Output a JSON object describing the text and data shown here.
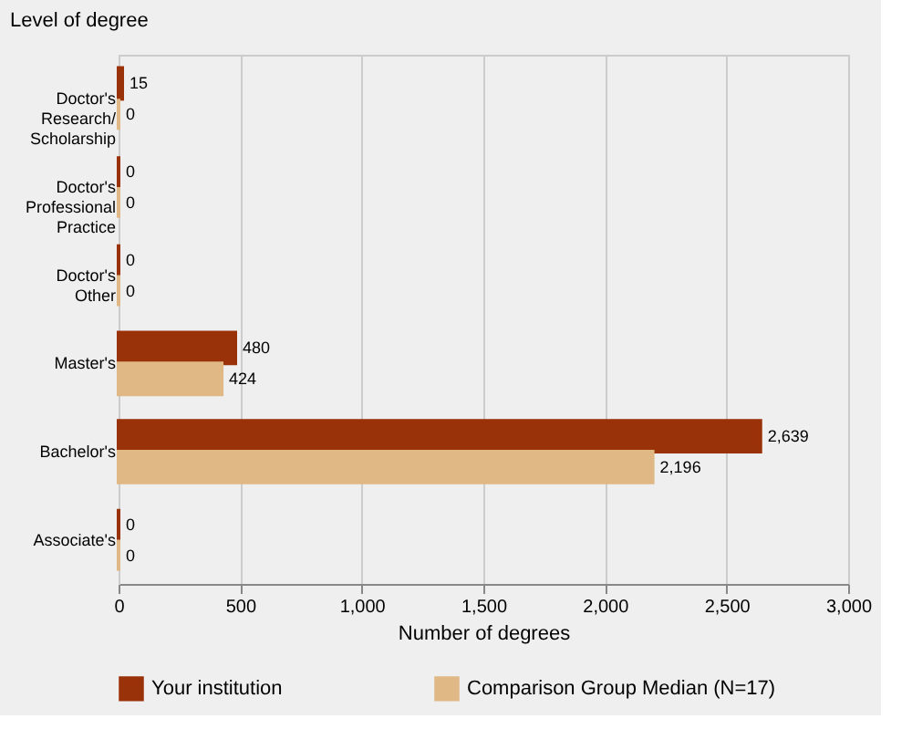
{
  "chart_data": {
    "type": "bar",
    "orientation": "horizontal",
    "ylabel": "Level of degree",
    "xlabel": "Number of degrees",
    "categories": [
      "Doctor's Research/ Scholarship",
      "Doctor's Professional Practice",
      "Doctor's Other",
      "Master's",
      "Bachelor's",
      "Associate's"
    ],
    "series": [
      {
        "name": "Your institution",
        "color": "#9a3209",
        "values": [
          15,
          0,
          0,
          480,
          2639,
          0
        ],
        "value_labels": [
          "15",
          "0",
          "0",
          "480",
          "2,639",
          "0"
        ]
      },
      {
        "name": "Comparison Group Median (N=17)",
        "color": "#dfb886",
        "values": [
          0,
          0,
          0,
          424,
          2196,
          0
        ],
        "value_labels": [
          "0",
          "0",
          "0",
          "424",
          "2,196",
          "0"
        ]
      }
    ],
    "xlim": [
      0,
      3000
    ],
    "xticks": [
      0,
      {
        "value": 500,
        "label": "500"
      },
      {
        "value": 1000,
        "label": "1,000"
      },
      {
        "value": 1500,
        "label": "1,500"
      },
      {
        "value": 2000,
        "label": "2,000"
      },
      {
        "value": 2500,
        "label": "2,500"
      },
      {
        "value": 3000,
        "label": "3,000"
      }
    ],
    "grid": "x",
    "legend": "bottom"
  }
}
